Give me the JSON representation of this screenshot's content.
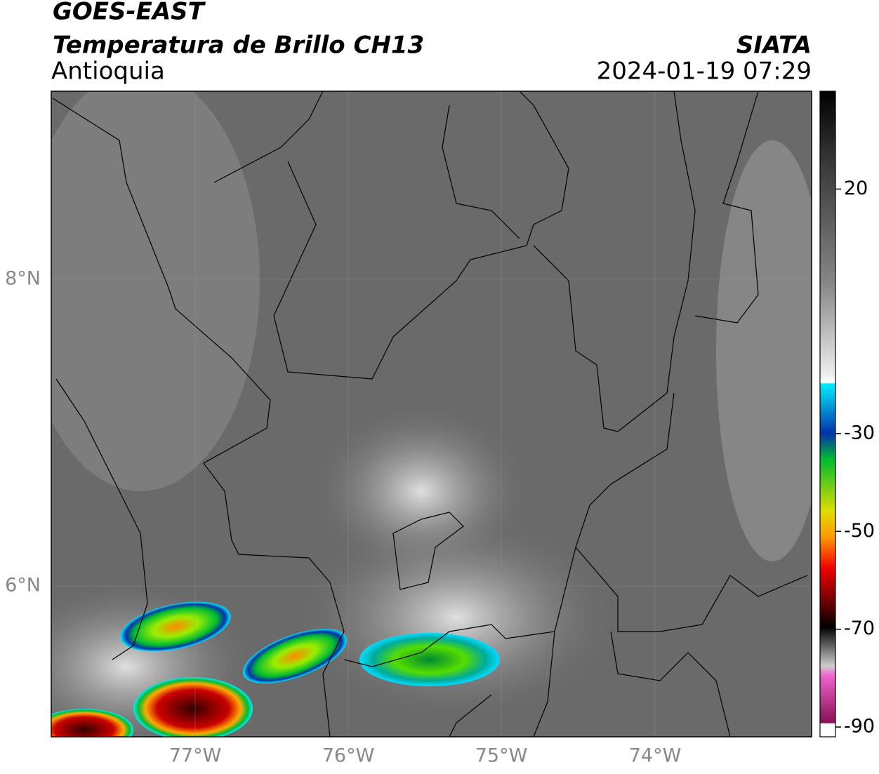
{
  "header": {
    "title": "GOES-EAST",
    "subtitle": "Temperatura de Brillo CH13",
    "region": "Antioquia",
    "source": "SIATA",
    "datetime": "2024-01-19 07:29"
  },
  "map": {
    "lat_labels": [
      "8°N",
      "6°N"
    ],
    "lon_labels": [
      "77°W",
      "76°W",
      "75°W",
      "74°W"
    ]
  },
  "colorbar": {
    "range": [
      40,
      -92
    ],
    "ticks": [
      20,
      -30,
      -50,
      -70,
      -90
    ]
  }
}
